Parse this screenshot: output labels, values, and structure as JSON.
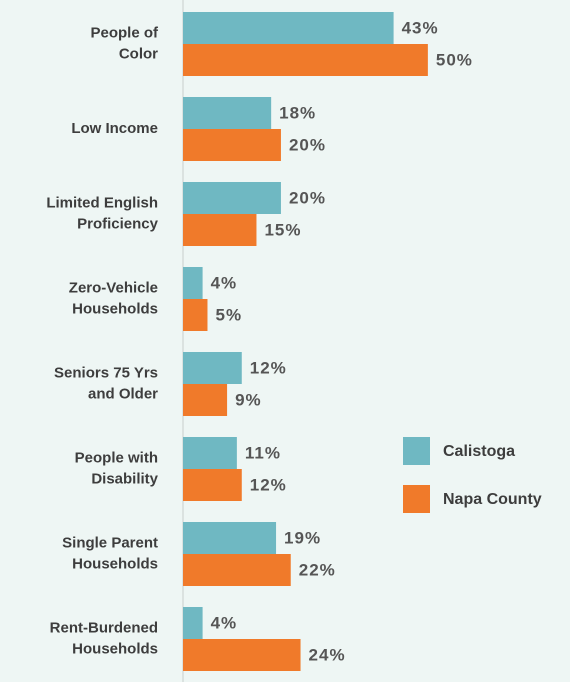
{
  "chart_data": {
    "type": "hbar",
    "categories": [
      "People of\nColor",
      "Low Income",
      "Limited English\nProficiency",
      "Zero-Vehicle\nHouseholds",
      "Seniors 75 Yrs\nand Older",
      "People with\nDisability",
      "Single Parent\nHouseholds",
      "Rent-Burdened\nHouseholds"
    ],
    "series": [
      {
        "name": "Calistoga",
        "color": "#6fb8c2",
        "values": [
          43,
          18,
          20,
          4,
          12,
          11,
          19,
          4
        ],
        "value_labels": [
          "43%",
          "18%",
          "20%",
          "4%",
          "12%",
          "11%",
          "19%",
          "4%"
        ]
      },
      {
        "name": "Napa County",
        "color": "#f07a2a",
        "values": [
          50,
          20,
          15,
          5,
          9,
          12,
          22,
          24
        ],
        "value_labels": [
          "50%",
          "20%",
          "15%",
          "5%",
          "9%",
          "12%",
          "22%",
          "24%"
        ]
      }
    ],
    "xlim": [
      0,
      78
    ],
    "legend": "right"
  }
}
